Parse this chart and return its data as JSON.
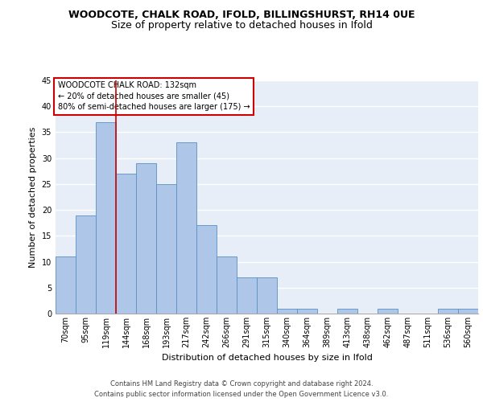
{
  "title1": "WOODCOTE, CHALK ROAD, IFOLD, BILLINGSHURST, RH14 0UE",
  "title2": "Size of property relative to detached houses in Ifold",
  "xlabel": "Distribution of detached houses by size in Ifold",
  "ylabel": "Number of detached properties",
  "categories": [
    "70sqm",
    "95sqm",
    "119sqm",
    "144sqm",
    "168sqm",
    "193sqm",
    "217sqm",
    "242sqm",
    "266sqm",
    "291sqm",
    "315sqm",
    "340sqm",
    "364sqm",
    "389sqm",
    "413sqm",
    "438sqm",
    "462sqm",
    "487sqm",
    "511sqm",
    "536sqm",
    "560sqm"
  ],
  "values": [
    11,
    19,
    37,
    27,
    29,
    25,
    33,
    17,
    11,
    7,
    7,
    1,
    1,
    0,
    1,
    0,
    1,
    0,
    0,
    1,
    1
  ],
  "bar_color": "#aec6e8",
  "bar_edge_color": "#5a8fc2",
  "background_color": "#e8eef7",
  "grid_color": "#ffffff",
  "annotation_text": "WOODCOTE CHALK ROAD: 132sqm\n← 20% of detached houses are smaller (45)\n80% of semi-detached houses are larger (175) →",
  "annotation_box_edge": "#cc0000",
  "vertical_line_color": "#cc0000",
  "vertical_line_x": 2.5,
  "ylim": [
    0,
    45
  ],
  "yticks": [
    0,
    5,
    10,
    15,
    20,
    25,
    30,
    35,
    40,
    45
  ],
  "footer": "Contains HM Land Registry data © Crown copyright and database right 2024.\nContains public sector information licensed under the Open Government Licence v3.0.",
  "title1_fontsize": 9,
  "title2_fontsize": 9,
  "annotation_fontsize": 7,
  "ylabel_fontsize": 8,
  "xlabel_fontsize": 8,
  "tick_fontsize": 7,
  "footer_fontsize": 6
}
